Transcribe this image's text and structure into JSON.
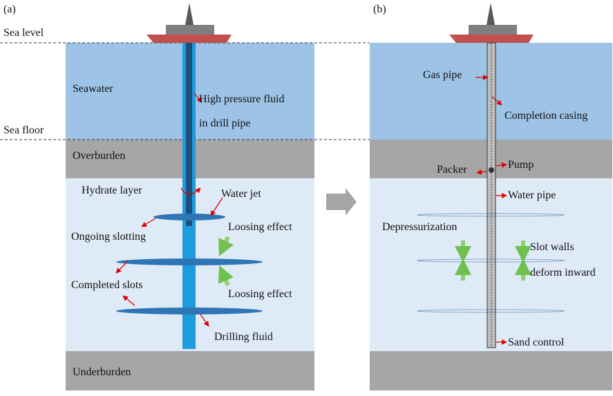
{
  "side_labels": {
    "panel_a": "(a)",
    "panel_b": "(b)",
    "sea_level": "Sea level",
    "sea_floor": "Sea floor"
  },
  "panel_a": {
    "seawater": "Seawater",
    "fluid_1": "High pressure fluid",
    "fluid_2": "in drill pipe",
    "overburden": "Overburden",
    "hydrate_layer": "Hydrate layer",
    "water_jet": "Water jet",
    "ongoing_slotting": "Ongoing slotting",
    "loosing_effect_1": "Loosing effect",
    "completed_slots": "Completed slots",
    "loosing_effect_2": "Loosing effect",
    "drilling_fluid": "Drilling fluid",
    "underburden": "Underburden"
  },
  "panel_b": {
    "gas_pipe": "Gas pipe",
    "completion_casing": "Completion casing",
    "pump": "Pump",
    "packer": "Packer",
    "water_pipe": "Water pipe",
    "depressurization": "Depressurization",
    "slot_walls": "Slot walls",
    "deform_inward": "deform inward",
    "sand_control": "Sand control"
  }
}
